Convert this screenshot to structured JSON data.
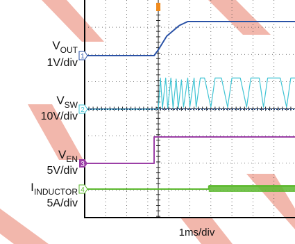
{
  "chart_data": {
    "type": "line",
    "title": "",
    "xlabel": "1ms/div",
    "x_units": "ms",
    "x_divisions": 10,
    "y_divisions": 8,
    "xlim": [
      -3.5,
      6.5
    ],
    "trigger_time_ms": 0,
    "grid": true,
    "series": [
      {
        "id": "vout",
        "name_main": "V",
        "name_sub": "OUT",
        "scale": "1V/div",
        "channel": "1",
        "color": "#2a52a6",
        "points": [
          [
            -3.5,
            0.0
          ],
          [
            -0.2,
            0.0
          ],
          [
            0.0,
            0.3
          ],
          [
            0.4,
            1.0
          ],
          [
            1.0,
            1.55
          ],
          [
            1.4,
            1.75
          ],
          [
            2.0,
            1.75
          ],
          [
            6.5,
            1.75
          ]
        ]
      },
      {
        "id": "vsw",
        "name_main": "V",
        "name_sub": "SW",
        "scale": "10V/div",
        "channel": "2",
        "color": "#3fc4d4",
        "points": [
          [
            -3.5,
            0.0
          ],
          [
            0.0,
            0.0
          ],
          [
            0.1,
            1.6
          ],
          [
            0.2,
            0.05
          ],
          [
            0.35,
            1.6
          ],
          [
            0.45,
            0.05
          ],
          [
            0.6,
            1.6
          ],
          [
            0.7,
            0.05
          ],
          [
            0.85,
            1.55
          ],
          [
            0.95,
            0.05
          ],
          [
            1.1,
            1.5
          ],
          [
            1.2,
            0.1
          ],
          [
            1.4,
            1.6
          ],
          [
            1.5,
            0.1
          ],
          [
            1.7,
            1.6
          ],
          [
            1.8,
            0.1
          ],
          [
            2.0,
            1.6
          ],
          [
            2.2,
            1.6
          ],
          [
            2.5,
            0.1
          ],
          [
            2.7,
            1.6
          ],
          [
            3.0,
            1.6
          ],
          [
            3.3,
            0.1
          ],
          [
            3.5,
            1.6
          ],
          [
            3.9,
            1.6
          ],
          [
            4.2,
            0.1
          ],
          [
            4.4,
            1.6
          ],
          [
            4.8,
            1.6
          ],
          [
            5.0,
            0.1
          ],
          [
            5.2,
            1.6
          ],
          [
            5.8,
            1.6
          ],
          [
            6.1,
            0.1
          ],
          [
            6.3,
            1.6
          ],
          [
            6.5,
            1.6
          ]
        ]
      },
      {
        "id": "ven",
        "name_main": "V",
        "name_sub": "EN",
        "scale": "5V/div",
        "channel": "3",
        "color": "#9b3fa6",
        "points": [
          [
            -3.5,
            0.0
          ],
          [
            -0.2,
            0.0
          ],
          [
            -0.2,
            1.0
          ],
          [
            6.5,
            1.0
          ]
        ]
      },
      {
        "id": "iind",
        "name_main": "I",
        "name_sub": "INDUCTOR",
        "scale": "5A/div",
        "channel": "4",
        "color": "#5cb82e",
        "points": [
          [
            -3.5,
            0.0
          ],
          [
            2.4,
            0.0
          ],
          [
            2.4,
            0.15
          ],
          [
            6.5,
            0.15
          ]
        ]
      }
    ]
  },
  "colors": {
    "grid": "#444444",
    "frame": "#000000",
    "watermark": "#f2b7ac",
    "trigger": "#f08a1c"
  }
}
